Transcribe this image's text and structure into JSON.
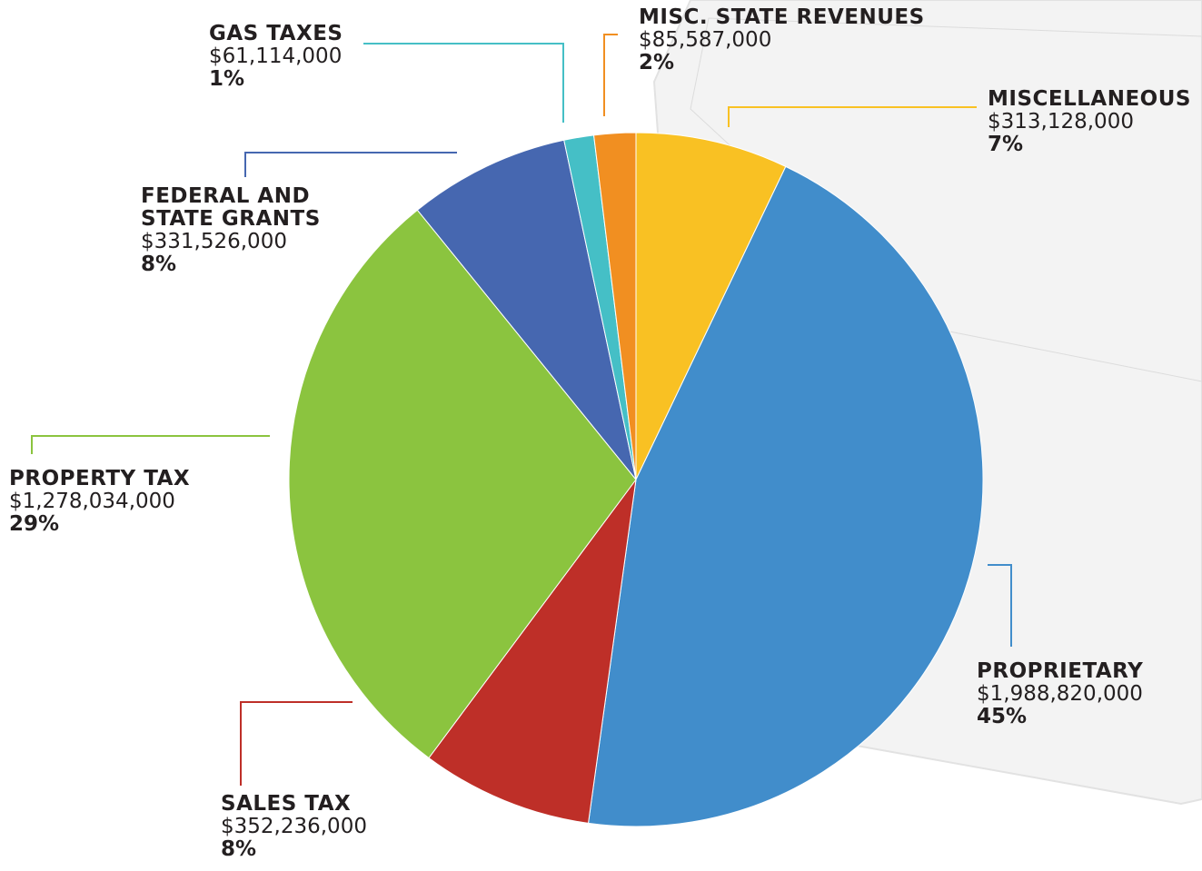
{
  "chart_data": {
    "type": "pie",
    "categories": [
      "MISCELLANEOUS",
      "PROPRIETARY",
      "SALES TAX",
      "PROPERTY TAX",
      "FEDERAL AND STATE GRANTS",
      "GAS TAXES",
      "MISC. STATE REVENUES"
    ],
    "values": [
      313128000,
      1988820000,
      352236000,
      1278034000,
      331526000,
      61114000,
      85587000
    ],
    "value_labels": [
      "$313,128,000",
      "$1,988,820,000",
      "$352,236,000",
      "$1,278,034,000",
      "$331,526,000",
      "$61,114,000",
      "$85,587,000"
    ],
    "percents": [
      7,
      45,
      8,
      29,
      8,
      1,
      2
    ],
    "percent_labels": [
      "7%",
      "45%",
      "8%",
      "29%",
      "8%",
      "1%",
      "2%"
    ],
    "colors": [
      "#f9c123",
      "#418dcb",
      "#be2f28",
      "#8bc43f",
      "#4667b0",
      "#45bfc6",
      "#f18f21"
    ]
  }
}
